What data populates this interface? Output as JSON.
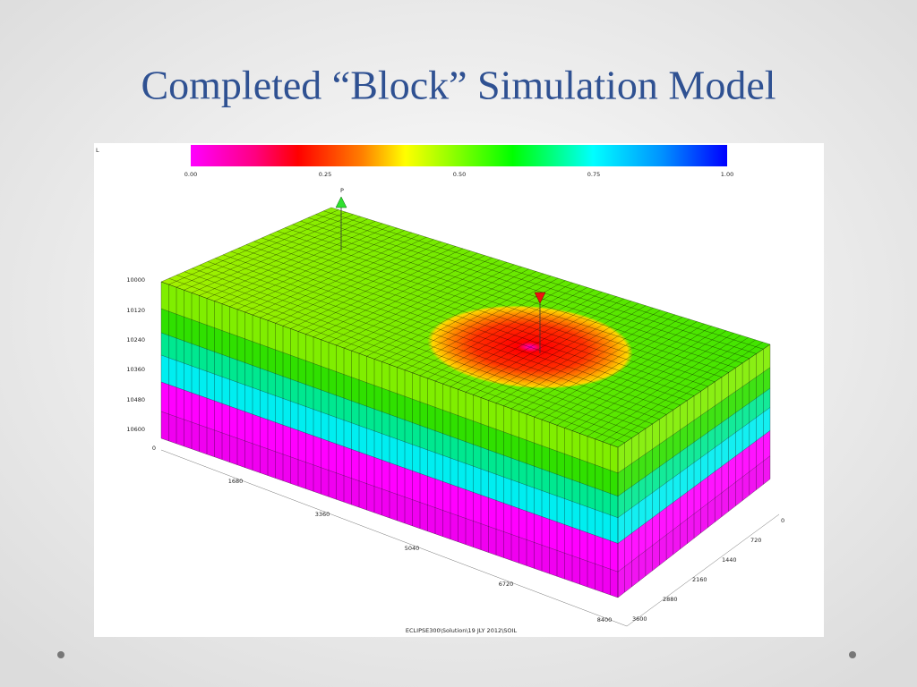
{
  "title": "Completed “Block” Simulation Model",
  "figure": {
    "corner_label": "L",
    "colorbar": {
      "ticks": [
        "0.00",
        "0.25",
        "0.50",
        "0.75",
        "1.00"
      ]
    },
    "well_label": "P",
    "depth_labels": [
      "10000",
      "10120",
      "10240",
      "10360",
      "10480",
      "10600"
    ],
    "x_labels": [
      "0",
      "1680",
      "3360",
      "5040",
      "6720",
      "8400"
    ],
    "y_labels": [
      "0",
      "720",
      "1440",
      "2160",
      "2880",
      "3600"
    ],
    "footer": "ECLIPSE300\\Solution\\19 JLY 2012\\SOIL"
  }
}
